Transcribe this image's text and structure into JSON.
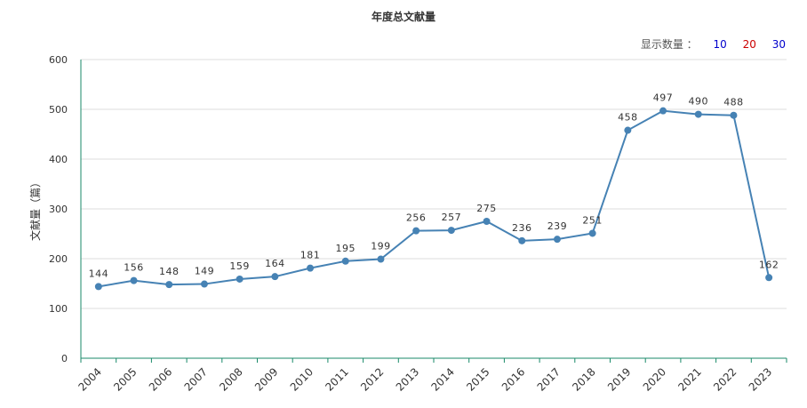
{
  "chart_data": {
    "type": "line",
    "title": "年度总文献量",
    "xlabel": "",
    "ylabel": "文献量（篇）",
    "ylim": [
      0,
      600
    ],
    "yticks": [
      0,
      100,
      200,
      300,
      400,
      500,
      600
    ],
    "grid": true,
    "categories": [
      "2004",
      "2005",
      "2006",
      "2007",
      "2008",
      "2009",
      "2010",
      "2011",
      "2012",
      "2013",
      "2014",
      "2015",
      "2016",
      "2017",
      "2018",
      "2019",
      "2020",
      "2021",
      "2022",
      "2023"
    ],
    "values": [
      144,
      156,
      148,
      149,
      159,
      164,
      181,
      195,
      199,
      256,
      257,
      275,
      236,
      239,
      251,
      458,
      497,
      490,
      488,
      162
    ],
    "line_color": "#4682B4"
  },
  "display_count": {
    "label": "显示数量 ：",
    "options": [
      {
        "text": "10",
        "color": "#0000CC"
      },
      {
        "text": "20",
        "color": "#CC0000"
      },
      {
        "text": "30",
        "color": "#0000CC"
      }
    ]
  }
}
